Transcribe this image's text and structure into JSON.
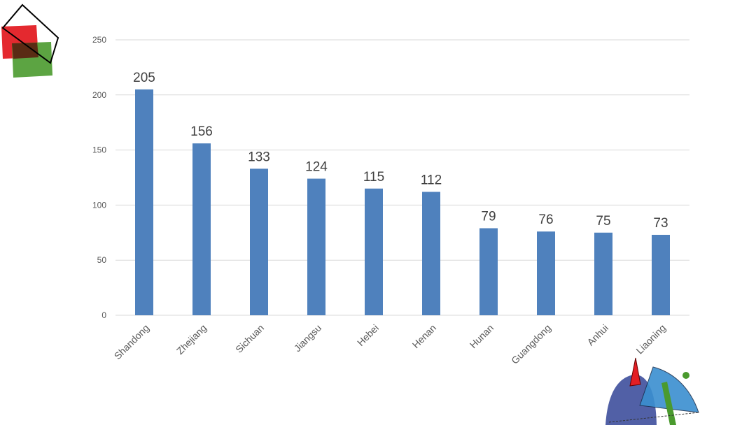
{
  "chart_data": {
    "type": "bar",
    "categories": [
      "Shandong",
      "Zhejiang",
      "Sichuan",
      "Jiangsu",
      "Hebei",
      "Henan",
      "Hunan",
      "Guangdong",
      "Anhui",
      "Liaoning"
    ],
    "values": [
      205,
      156,
      133,
      124,
      115,
      112,
      79,
      76,
      75,
      73
    ],
    "yticks": [
      0,
      50,
      100,
      150,
      200,
      250
    ],
    "ylim": [
      0,
      250
    ],
    "grid": true,
    "bar_color": "#4f81bd",
    "title": "",
    "xlabel": "",
    "ylabel": ""
  },
  "decorations": {
    "top_left": [
      "red-square-shape",
      "green-square-shape",
      "outline-diamond-shape"
    ],
    "bottom_right": [
      "blue-dome-shape",
      "light-blue-fan-shape",
      "red-triangle-shape",
      "green-bar-shape",
      "green-dot-shape"
    ],
    "colors": {
      "red": "#e31e24",
      "green": "#4a9a2e",
      "dark_blue": "#3e4f9c",
      "light_blue": "#3a8fd0"
    }
  }
}
